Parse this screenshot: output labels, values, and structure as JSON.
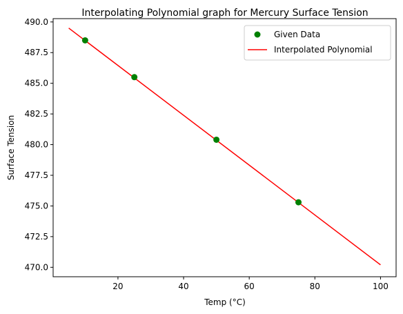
{
  "chart_data": {
    "type": "scatter",
    "title": "Interpolating Polynomial graph for Mercury Surface Tension",
    "xlabel": "Temp (°C)",
    "ylabel": "Surface Tension",
    "xlim": [
      0.25,
      104.75
    ],
    "ylim": [
      469.23,
      490.27
    ],
    "x_ticks": [
      20,
      40,
      60,
      80,
      100
    ],
    "x_tick_labels": [
      "20",
      "40",
      "60",
      "80",
      "100"
    ],
    "y_ticks": [
      470.0,
      472.5,
      475.0,
      477.5,
      480.0,
      482.5,
      485.0,
      487.5,
      490.0
    ],
    "y_tick_labels": [
      "470.0",
      "472.5",
      "475.0",
      "477.5",
      "480.0",
      "482.5",
      "485.0",
      "487.5",
      "490.0"
    ],
    "grid": false,
    "legend_position": "upper right",
    "series": [
      {
        "name": "Given Data",
        "kind": "scatter",
        "color": "#008000",
        "x": [
          10,
          25,
          50,
          75
        ],
        "y": [
          488.5,
          485.5,
          480.4,
          475.3
        ]
      },
      {
        "name": "Interpolated Polynomial",
        "kind": "line",
        "color": "#ff0000",
        "x": [
          5,
          100
        ],
        "y": [
          489.5,
          470.2
        ]
      }
    ]
  }
}
